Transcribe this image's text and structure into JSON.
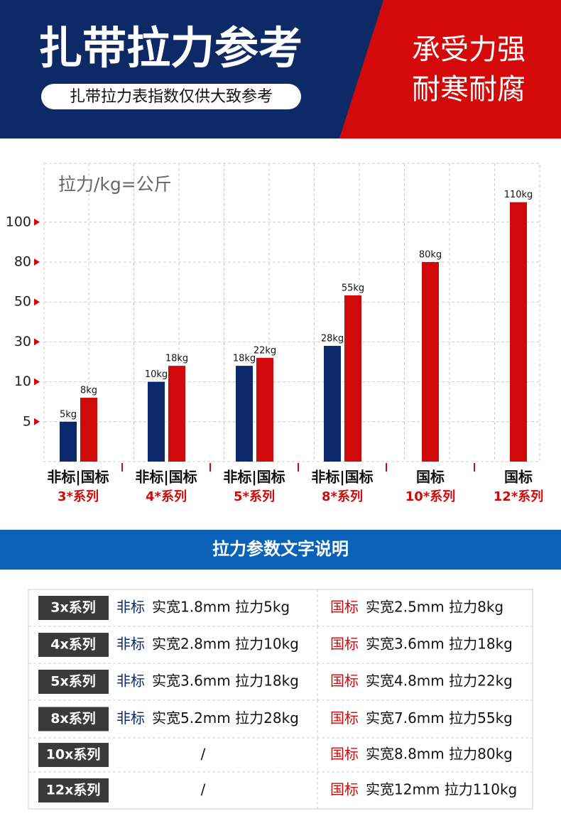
{
  "header": {
    "title": "扎带拉力参考",
    "subtitle": "扎带拉力表指数仅供大致参考",
    "tagline": [
      "承受力强",
      "耐寒耐腐"
    ]
  },
  "chart_data": {
    "type": "bar",
    "y_label": "拉力/kg=公斤",
    "categories": [
      "3*系列",
      "4*系列",
      "5*系列",
      "8*系列",
      "10*系列",
      "12*系列"
    ],
    "category_types": [
      "非标|国标",
      "非标|国标",
      "非标|国标",
      "非标|国标",
      "国标",
      "国标"
    ],
    "series": [
      {
        "color": "#0c2a6b",
        "values": [
          5,
          10,
          18,
          28,
          null,
          null
        ],
        "value_labels": [
          "5kg",
          "10kg",
          "18kg",
          "28kg",
          null,
          null
        ]
      },
      {
        "color": "#d00a0a",
        "values": [
          8,
          18,
          22,
          55,
          80,
          110
        ],
        "value_labels": [
          "8kg",
          "18kg",
          "22kg",
          "55kg",
          "80kg",
          "110kg"
        ]
      }
    ],
    "ylim": [
      0,
      110
    ],
    "yticks": [
      5,
      10,
      30,
      50,
      80,
      100
    ],
    "grid": true
  },
  "section_title": "拉力参数文字说明",
  "table": {
    "rows": [
      {
        "series": "3x系列",
        "left": [
          "非标",
          "实宽1.8mm 拉力5kg"
        ],
        "right": [
          "国标",
          "实宽2.5mm 拉力8kg"
        ]
      },
      {
        "series": "4x系列",
        "left": [
          "非标",
          "实宽2.8mm 拉力10kg"
        ],
        "right": [
          "国标",
          "实宽3.6mm 拉力18kg"
        ]
      },
      {
        "series": "5x系列",
        "left": [
          "非标",
          "实宽3.6mm 拉力18kg"
        ],
        "right": [
          "国标",
          "实宽4.8mm 拉力22kg"
        ]
      },
      {
        "series": "8x系列",
        "left": [
          "非标",
          "实宽5.2mm 拉力28kg"
        ],
        "right": [
          "国标",
          "实宽7.6mm 拉力55kg"
        ]
      },
      {
        "series": "10x系列",
        "left": [
          "/"
        ],
        "right": [
          "国标",
          "实宽8.8mm 拉力80kg"
        ]
      },
      {
        "series": "12x系列",
        "left": [
          "/"
        ],
        "right": [
          "国标",
          "实宽12mm 拉力110kg"
        ]
      }
    ]
  }
}
